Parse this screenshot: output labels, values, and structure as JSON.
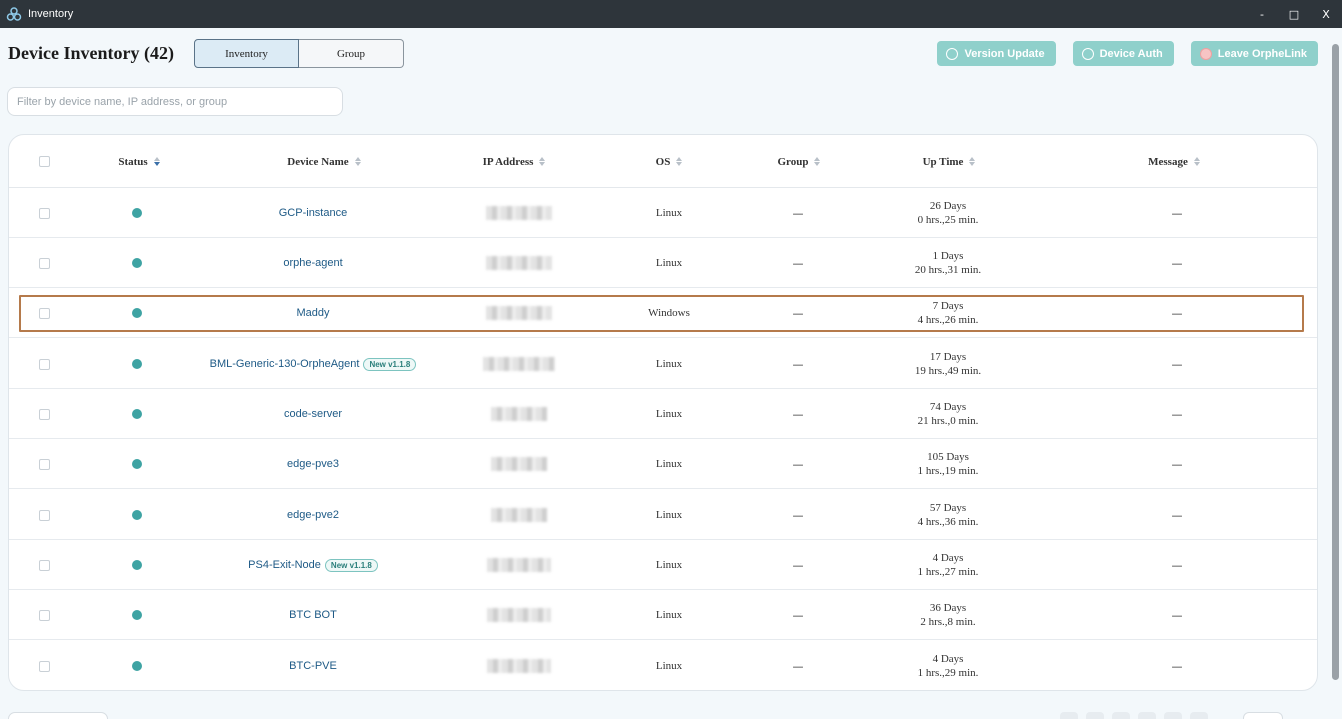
{
  "window": {
    "title": "Inventory",
    "controls": {
      "minimize": "-",
      "maximize": "□",
      "close": "X"
    }
  },
  "header": {
    "title": "Device Inventory (42)",
    "tabs": [
      {
        "label": "Inventory",
        "active": true
      },
      {
        "label": "Group",
        "active": false
      }
    ],
    "actions": [
      {
        "label": "Version Update",
        "icon": "clock-icon"
      },
      {
        "label": "Device Auth",
        "icon": "key-icon"
      },
      {
        "label": "Leave OrpheLink",
        "icon": "leave-icon"
      }
    ]
  },
  "filter": {
    "placeholder": "Filter by device name, IP address, or group",
    "value": ""
  },
  "table": {
    "columns": [
      "Status",
      "Device Name",
      "IP Address",
      "OS",
      "Group",
      "Up Time",
      "Message"
    ],
    "rows": [
      {
        "status": "online",
        "name": "GCP-instance",
        "badge": "",
        "os": "Linux",
        "group": "—",
        "uptime_days": "26 Days",
        "uptime_time": "0 hrs.,25 min.",
        "message": "—"
      },
      {
        "status": "online",
        "name": "orphe-agent",
        "badge": "",
        "os": "Linux",
        "group": "—",
        "uptime_days": "1 Days",
        "uptime_time": "20 hrs.,31 min.",
        "message": "—"
      },
      {
        "status": "online",
        "name": "Maddy",
        "badge": "",
        "os": "Windows",
        "group": "—",
        "uptime_days": "7 Days",
        "uptime_time": "4 hrs.,26 min.",
        "message": "—"
      },
      {
        "status": "online",
        "name": "BML-Generic-130-OrpheAgent",
        "badge": "New v1.1.8",
        "os": "Linux",
        "group": "—",
        "uptime_days": "17 Days",
        "uptime_time": "19 hrs.,49 min.",
        "message": "—"
      },
      {
        "status": "online",
        "name": "code-server",
        "badge": "",
        "os": "Linux",
        "group": "—",
        "uptime_days": "74 Days",
        "uptime_time": "21 hrs.,0 min.",
        "message": "—"
      },
      {
        "status": "online",
        "name": "edge-pve3",
        "badge": "",
        "os": "Linux",
        "group": "—",
        "uptime_days": "105 Days",
        "uptime_time": "1 hrs.,19 min.",
        "message": "—"
      },
      {
        "status": "online",
        "name": "edge-pve2",
        "badge": "",
        "os": "Linux",
        "group": "—",
        "uptime_days": "57 Days",
        "uptime_time": "4 hrs.,36 min.",
        "message": "—"
      },
      {
        "status": "online",
        "name": "PS4-Exit-Node",
        "badge": "New v1.1.8",
        "os": "Linux",
        "group": "—",
        "uptime_days": "4 Days",
        "uptime_time": "1 hrs.,27 min.",
        "message": "—"
      },
      {
        "status": "online",
        "name": "BTC BOT",
        "badge": "",
        "os": "Linux",
        "group": "—",
        "uptime_days": "36 Days",
        "uptime_time": "2 hrs.,8 min.",
        "message": "—"
      },
      {
        "status": "online",
        "name": "BTC-PVE",
        "badge": "",
        "os": "Linux",
        "group": "—",
        "uptime_days": "4 Days",
        "uptime_time": "1 hrs.,29 min.",
        "message": "—"
      }
    ]
  },
  "colors": {
    "titlebar": "#2e353b",
    "accent": "#8fd0cb",
    "status_online": "#3ea3a3",
    "link": "#1e5a86",
    "highlight": "#b57a4b"
  }
}
